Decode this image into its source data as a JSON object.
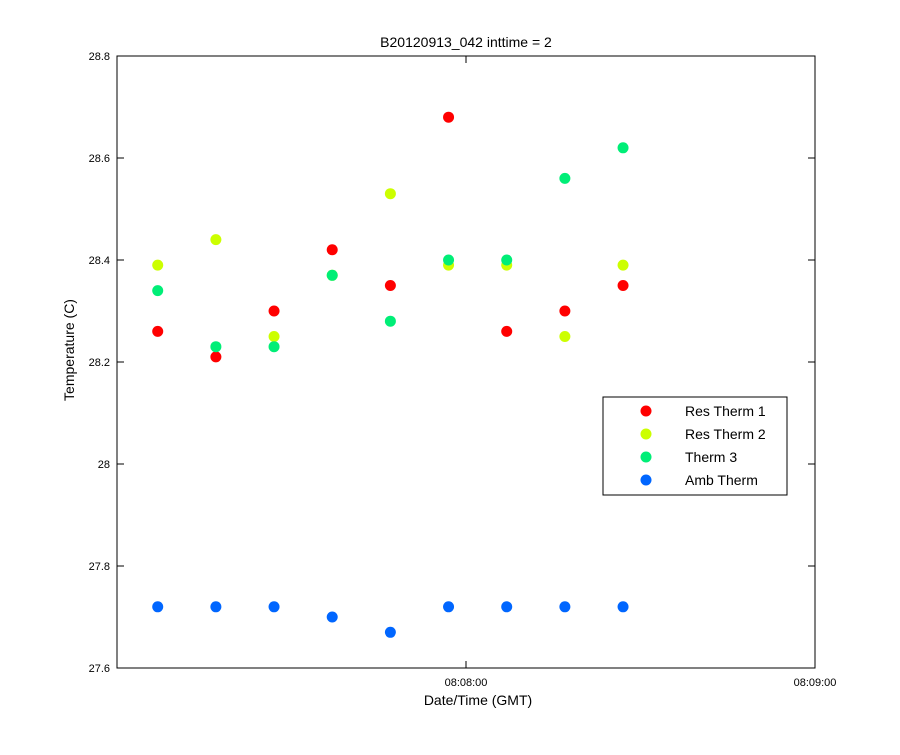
{
  "chart_data": {
    "type": "scatter",
    "title": "B20120913_042 inttime = 2",
    "xlabel": "Date/Time (GMT)",
    "ylabel": "Temperature (C)",
    "xlim": [
      "08:07:00",
      "08:09:00"
    ],
    "ylim": [
      27.6,
      28.8
    ],
    "x_ticks": [
      "08:08:00",
      "08:09:00"
    ],
    "y_ticks": [
      "27.6",
      "27.8",
      "28",
      "28.2",
      "28.4",
      "28.6",
      "28.8"
    ],
    "grid": false,
    "legend_position": "right",
    "x": [
      "08:07:07",
      "08:07:17",
      "08:07:27",
      "08:07:37",
      "08:07:47",
      "08:07:57",
      "08:08:07",
      "08:08:17",
      "08:08:27"
    ],
    "series": [
      {
        "name": "Res Therm 1",
        "color": "#ff0000",
        "values": [
          28.26,
          28.21,
          28.3,
          28.42,
          28.35,
          28.68,
          28.26,
          28.3,
          28.35
        ]
      },
      {
        "name": "Res Therm 2",
        "color": "#ccff00",
        "values": [
          28.39,
          28.44,
          28.25,
          28.37,
          28.53,
          28.39,
          28.39,
          28.25,
          28.39
        ]
      },
      {
        "name": "Therm 3",
        "color": "#00ee77",
        "values": [
          28.34,
          28.23,
          28.23,
          28.37,
          28.28,
          28.4,
          28.4,
          28.56,
          28.62
        ]
      },
      {
        "name": "Amb Therm",
        "color": "#0066ff",
        "values": [
          27.72,
          27.72,
          27.72,
          27.7,
          27.67,
          27.72,
          27.72,
          27.72,
          27.72
        ]
      }
    ]
  }
}
